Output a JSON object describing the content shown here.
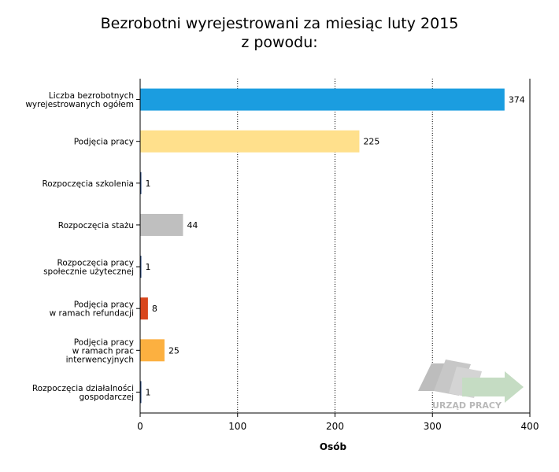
{
  "chart_data": {
    "type": "bar",
    "orientation": "horizontal",
    "title_lines": [
      "Bezrobotni wyrejestrowani za miesiąc luty 2015",
      "z powodu:"
    ],
    "xlabel": "Osób",
    "ylabel": "",
    "xlim": [
      0,
      400
    ],
    "x_ticks": [
      0,
      100,
      200,
      300,
      400
    ],
    "grid": "vertical dotted",
    "categories": [
      {
        "lines": [
          "Liczba bezrobotnych",
          "wyrejestrowanych ogółem"
        ],
        "value": 374,
        "color": "#1b9de0"
      },
      {
        "lines": [
          "Podjęcia pracy"
        ],
        "value": 225,
        "color": "#ffe08c"
      },
      {
        "lines": [
          "Rozpoczęcia szkolenia"
        ],
        "value": 1,
        "color": "#1f3f74"
      },
      {
        "lines": [
          "Rozpoczęcia stażu"
        ],
        "value": 44,
        "color": "#bfbfbf"
      },
      {
        "lines": [
          "Rozpoczęcia pracy",
          "społecznie użytecznej"
        ],
        "value": 1,
        "color": "#1f3f74"
      },
      {
        "lines": [
          "Podjęcia pracy",
          "w ramach refundacji"
        ],
        "value": 8,
        "color": "#d9461c"
      },
      {
        "lines": [
          "Podjęcia pracy",
          "w ramach prac",
          "interwencyjnych"
        ],
        "value": 25,
        "color": "#fcb040"
      },
      {
        "lines": [
          "Rozpoczęcia działalności",
          "gospodarczej"
        ],
        "value": 1,
        "color": "#1f3f74"
      }
    ]
  },
  "logo": {
    "text": "URZĄD PRACY"
  }
}
